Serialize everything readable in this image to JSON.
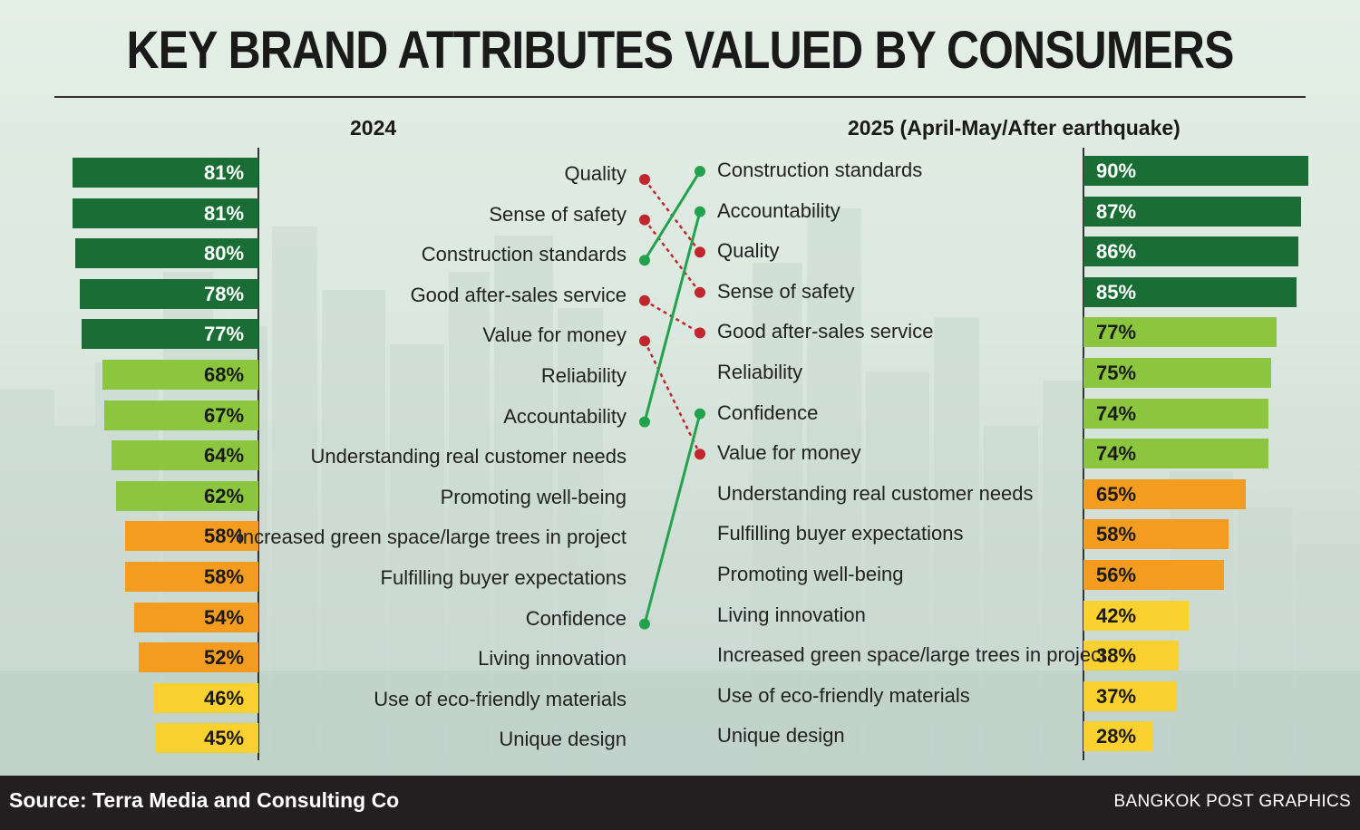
{
  "title": "KEY BRAND ATTRIBUTES VALUED BY CONSUMERS",
  "footer": {
    "source": "Source: Terra Media and Consulting Co",
    "credit": "BANGKOK POST GRAPHICS"
  },
  "colors": {
    "dark_green": "#1b6d36",
    "light_green": "#8cc63f",
    "orange": "#f39c1f",
    "yellow": "#fbd130",
    "rise_line": "#23a24d",
    "fall_line": "#c1272d"
  },
  "chart_data": {
    "type": "slope-bar",
    "left": {
      "label": "2024",
      "rows": [
        {
          "attribute": "Quality",
          "value": 81,
          "display": "81%",
          "color": "dark_green"
        },
        {
          "attribute": "Sense of safety",
          "value": 81,
          "display": "81%",
          "color": "dark_green"
        },
        {
          "attribute": "Construction standards",
          "value": 80,
          "display": "80%",
          "color": "dark_green"
        },
        {
          "attribute": "Good after-sales service",
          "value": 78,
          "display": "78%",
          "color": "dark_green"
        },
        {
          "attribute": "Value for money",
          "value": 77,
          "display": "77%",
          "color": "dark_green"
        },
        {
          "attribute": "Reliability",
          "value": 68,
          "display": "68%",
          "color": "light_green"
        },
        {
          "attribute": "Accountability",
          "value": 67,
          "display": "67%",
          "color": "light_green"
        },
        {
          "attribute": "Understanding real customer needs",
          "value": 64,
          "display": "64%",
          "color": "light_green"
        },
        {
          "attribute": "Promoting well-being",
          "value": 62,
          "display": "62%",
          "color": "light_green"
        },
        {
          "attribute": "Increased green space/large trees in project",
          "value": 58,
          "display": "58%",
          "color": "orange"
        },
        {
          "attribute": "Fulfilling buyer expectations",
          "value": 58,
          "display": "58%",
          "color": "orange"
        },
        {
          "attribute": "Confidence",
          "value": 54,
          "display": "54%",
          "color": "orange"
        },
        {
          "attribute": "Living innovation",
          "value": 52,
          "display": "52%",
          "color": "orange"
        },
        {
          "attribute": "Use of eco-friendly materials",
          "value": 46,
          "display": "46%",
          "color": "yellow"
        },
        {
          "attribute": "Unique design",
          "value": 45,
          "display": "45%",
          "color": "yellow"
        }
      ]
    },
    "right": {
      "label": "2025 (April-May/After earthquake)",
      "rows": [
        {
          "attribute": "Construction standards",
          "value": 90,
          "display": "90%",
          "color": "dark_green"
        },
        {
          "attribute": "Accountability",
          "value": 87,
          "display": "87%",
          "color": "dark_green"
        },
        {
          "attribute": "Quality",
          "value": 86,
          "display": "86%",
          "color": "dark_green"
        },
        {
          "attribute": "Sense of safety",
          "value": 85,
          "display": "85%",
          "color": "dark_green"
        },
        {
          "attribute": "Good after-sales service",
          "value": 77,
          "display": "77%",
          "color": "light_green"
        },
        {
          "attribute": "Reliability",
          "value": 75,
          "display": "75%",
          "color": "light_green"
        },
        {
          "attribute": "Confidence",
          "value": 74,
          "display": "74%",
          "color": "light_green"
        },
        {
          "attribute": "Value for money",
          "value": 74,
          "display": "74%",
          "color": "light_green"
        },
        {
          "attribute": "Understanding real customer needs",
          "value": 65,
          "display": "65%",
          "color": "orange"
        },
        {
          "attribute": "Fulfilling buyer expectations",
          "value": 58,
          "display": "58%",
          "color": "orange"
        },
        {
          "attribute": "Promoting well-being",
          "value": 56,
          "display": "56%",
          "color": "orange"
        },
        {
          "attribute": "Living innovation",
          "value": 42,
          "display": "42%",
          "color": "yellow"
        },
        {
          "attribute": "Increased green space/large trees in project",
          "value": 38,
          "display": "38%",
          "color": "yellow"
        },
        {
          "attribute": "Use of eco-friendly materials",
          "value": 37,
          "display": "37%",
          "color": "yellow"
        },
        {
          "attribute": "Unique design",
          "value": 28,
          "display": "28%",
          "color": "yellow"
        }
      ]
    },
    "connectors": [
      {
        "attribute": "Quality",
        "from_rank": 1,
        "to_rank": 3,
        "direction": "down"
      },
      {
        "attribute": "Sense of safety",
        "from_rank": 2,
        "to_rank": 4,
        "direction": "down"
      },
      {
        "attribute": "Construction standards",
        "from_rank": 3,
        "to_rank": 1,
        "direction": "up"
      },
      {
        "attribute": "Good after-sales service",
        "from_rank": 4,
        "to_rank": 5,
        "direction": "down"
      },
      {
        "attribute": "Value for money",
        "from_rank": 5,
        "to_rank": 8,
        "direction": "down"
      },
      {
        "attribute": "Accountability",
        "from_rank": 7,
        "to_rank": 2,
        "direction": "up"
      },
      {
        "attribute": "Confidence",
        "from_rank": 12,
        "to_rank": 7,
        "direction": "up"
      }
    ]
  }
}
